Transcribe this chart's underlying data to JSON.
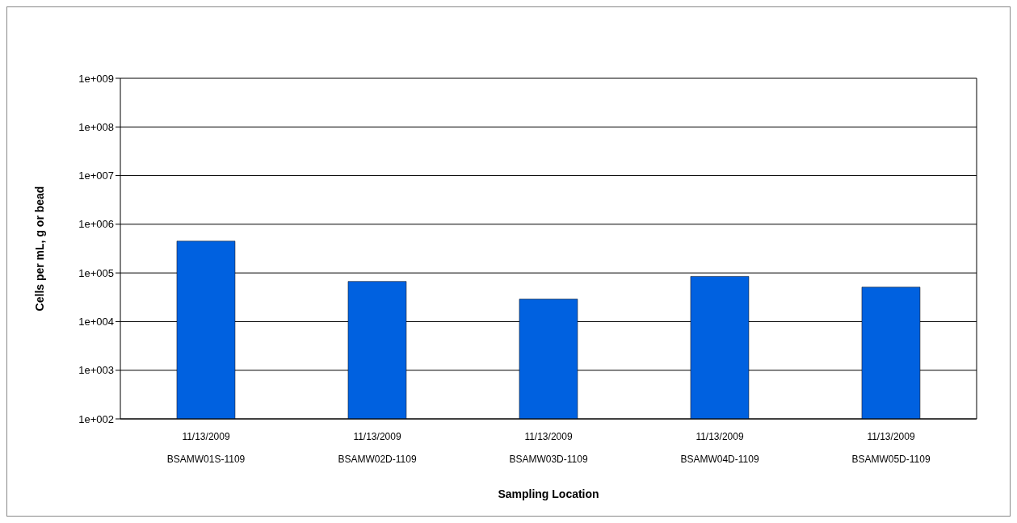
{
  "chart_data": {
    "type": "bar",
    "xlabel": "Sampling Location",
    "ylabel": "Cells per mL, g or bead",
    "categories": [
      "11/13/2009\nBSAMW01S-1109",
      "11/13/2009\nBSAMW02D-1109",
      "11/13/2009\nBSAMW03D-1109",
      "11/13/2009\nBSAMW04D-1109",
      "11/13/2009\nBSAMW05D-1109"
    ],
    "values": [
      450000,
      67000,
      29000,
      85000,
      51000
    ],
    "color": "#0061e0",
    "log": true,
    "ylim": [
      100,
      1000000000
    ],
    "yticks": [
      {
        "value": 100,
        "label": "1e+002"
      },
      {
        "value": 1000,
        "label": "1e+003"
      },
      {
        "value": 10000,
        "label": "1e+004"
      },
      {
        "value": 100000,
        "label": "1e+005"
      },
      {
        "value": 1000000,
        "label": "1e+006"
      },
      {
        "value": 10000000,
        "label": "1e+007"
      },
      {
        "value": 100000000,
        "label": "1e+008"
      },
      {
        "value": 1000000000,
        "label": "1e+009"
      }
    ],
    "grid": "y"
  }
}
